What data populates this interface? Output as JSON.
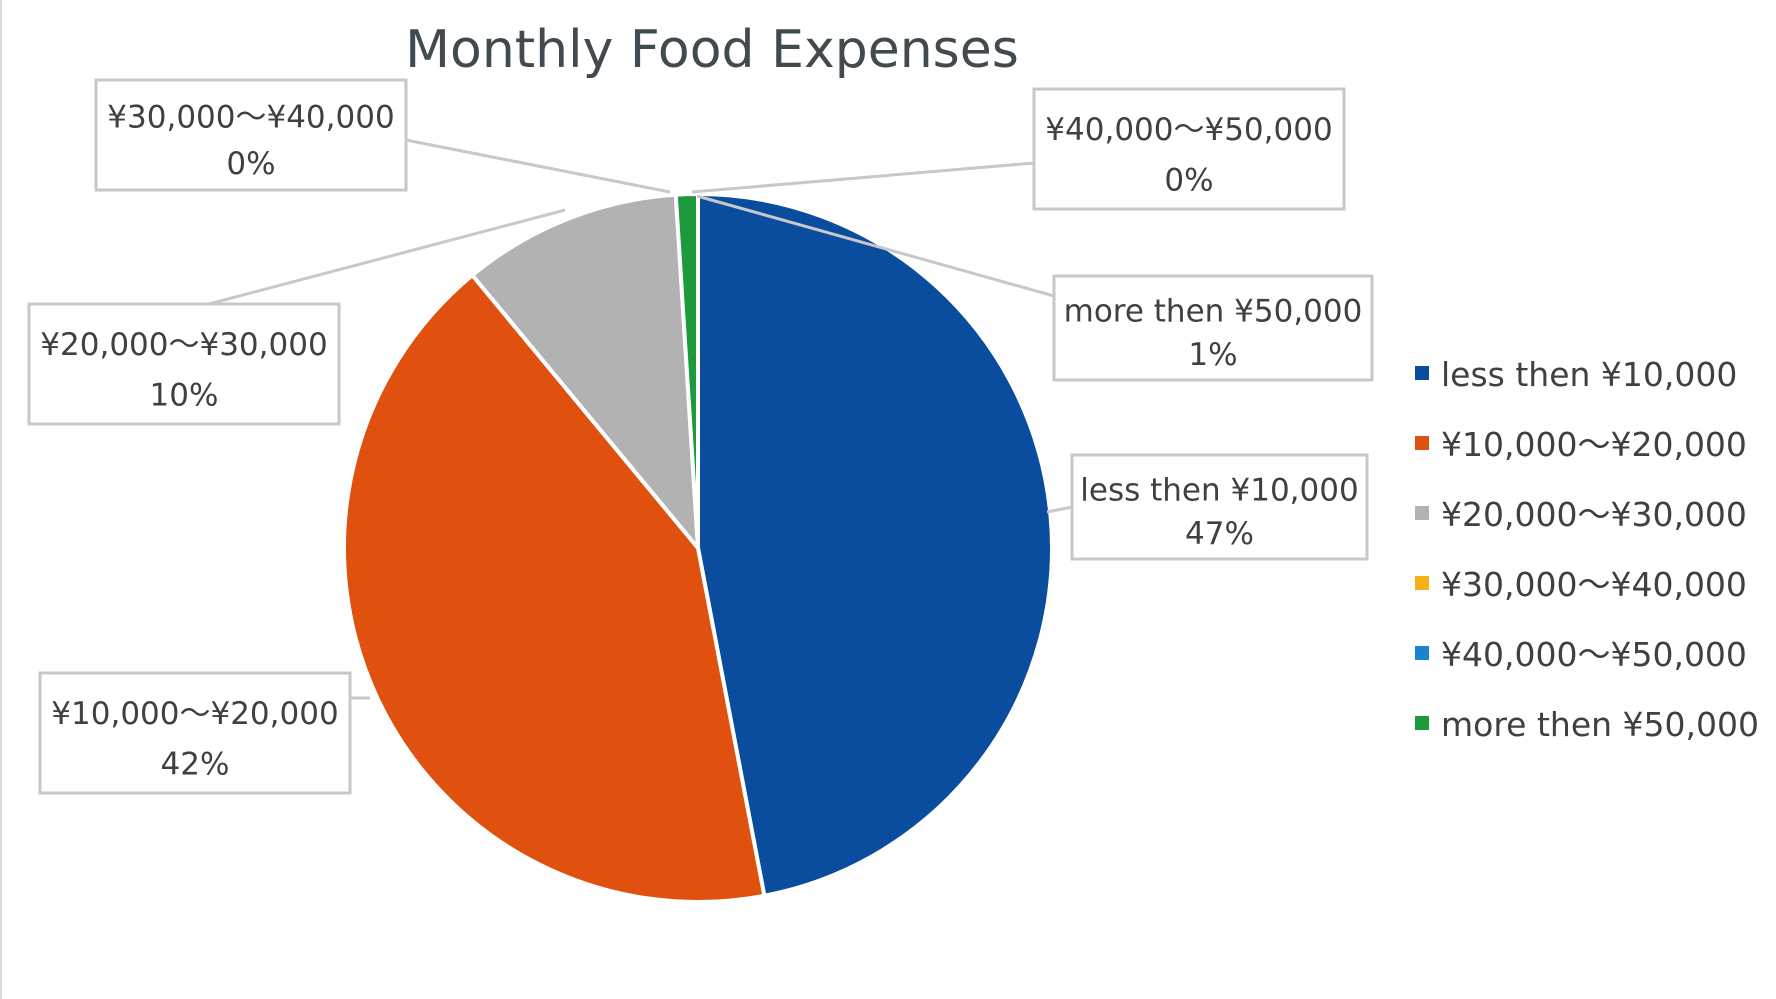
{
  "chart_data": {
    "type": "pie",
    "title": "Monthly Food Expenses",
    "categories": [
      "less then ¥10,000",
      "¥10,000～¥20,000",
      "¥20,000～¥30,000",
      "¥30,000～¥40,000",
      "¥40,000～¥50,000",
      "more then ¥50,000"
    ],
    "values": [
      47,
      42,
      10,
      0,
      0,
      1
    ],
    "data_labels": [
      "47%",
      "42%",
      "10%",
      "0%",
      "0%",
      "1%"
    ],
    "colors": [
      "#0a4c9e",
      "#e0510f",
      "#b2b2b2",
      "#f5b118",
      "#1a85cc",
      "#1d9a3c"
    ],
    "legend_position": "right"
  }
}
